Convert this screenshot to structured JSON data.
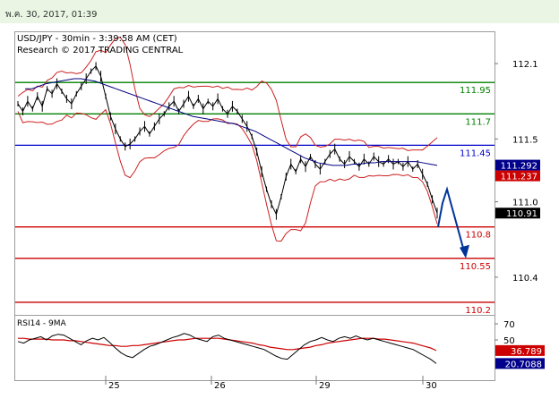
{
  "header": {
    "datetime": "พ.ค. 30, 2017, 01:39"
  },
  "chart_data": {
    "type": "line",
    "title": "USD/JPY - 30min - 3:39:58 AM (CET)",
    "subtitle": "Research © 2017 TRADING CENTRAL",
    "price_axis": {
      "ticks": [
        "112.1",
        "111.5",
        "111.0",
        "110.4"
      ],
      "range": [
        110.1,
        112.35
      ]
    },
    "x_ticks": [
      "25",
      "26",
      "29",
      "30"
    ],
    "series": [
      {
        "values": [
          111.78,
          111.72,
          111.8,
          111.74,
          111.84,
          111.76,
          111.9,
          111.86,
          111.94,
          111.88,
          111.82,
          111.78,
          111.86,
          111.92,
          111.98,
          112.04,
          112.08,
          112.0,
          111.84,
          111.68,
          111.58,
          111.5,
          111.44,
          111.46,
          111.5,
          111.56,
          111.6,
          111.54,
          111.6,
          111.66,
          111.7,
          111.76,
          111.8,
          111.72,
          111.78,
          111.84,
          111.76,
          111.82,
          111.74,
          111.8,
          111.76,
          111.82,
          111.74,
          111.7,
          111.76,
          111.72,
          111.66,
          111.6,
          111.52,
          111.4,
          111.24,
          111.1,
          110.98,
          110.9,
          111.04,
          111.2,
          111.3,
          111.24,
          111.34,
          111.28,
          111.36,
          111.3,
          111.26,
          111.32,
          111.38,
          111.42,
          111.34,
          111.3,
          111.36,
          111.32,
          111.28,
          111.34,
          111.3,
          111.36,
          111.32,
          111.3,
          111.34,
          111.3,
          111.32,
          111.28,
          111.32,
          111.26,
          111.3,
          111.22,
          111.14,
          111.02,
          110.91
        ]
      },
      {
        "values": [
          111.9,
          111.9,
          111.92,
          111.94,
          111.95,
          111.96,
          111.97,
          111.98,
          111.98,
          111.97,
          111.96,
          111.94,
          111.92,
          111.9,
          111.88,
          111.86,
          111.84,
          111.82,
          111.8,
          111.78,
          111.76,
          111.74,
          111.72,
          111.7,
          111.68,
          111.67,
          111.66,
          111.65,
          111.64,
          111.63,
          111.62,
          111.6,
          111.58,
          111.56,
          111.53,
          111.5,
          111.47,
          111.44,
          111.41,
          111.38,
          111.35,
          111.33,
          111.31,
          111.3,
          111.29,
          111.29,
          111.29,
          111.3,
          111.3,
          111.31,
          111.31,
          111.32,
          111.32,
          111.32,
          111.32,
          111.32,
          111.32,
          111.31,
          111.3,
          111.29
        ]
      }
    ],
    "levels": [
      {
        "value": 111.95,
        "label": "111.95",
        "color": "#008000"
      },
      {
        "value": 111.7,
        "label": "111.7",
        "color": "#008000"
      },
      {
        "value": 111.45,
        "label": "111.45",
        "color": "#0000cc"
      },
      {
        "value": 110.8,
        "label": "110.8",
        "color": "#cc0000"
      },
      {
        "value": 110.55,
        "label": "110.55",
        "color": "#cc0000"
      },
      {
        "value": 110.2,
        "label": "110.2",
        "color": "#cc0000"
      }
    ],
    "price_tags": [
      {
        "value": 111.292,
        "label": "111.292",
        "color": "#00008b"
      },
      {
        "value": 111.237,
        "label": "111.237",
        "color": "#cc0000"
      },
      {
        "value": 110.91,
        "label": "110.91",
        "color": "#000000"
      }
    ],
    "forecast_arrow": {
      "from": 111.1,
      "to": 110.55,
      "color": "#003399"
    },
    "rsi": {
      "title": "RSI14 - 9MA",
      "axis_ticks": [
        "70",
        "50"
      ],
      "range": [
        0,
        80
      ],
      "tags": [
        {
          "value": 36.789,
          "label": "36.789",
          "color": "#cc0000"
        },
        {
          "value": 20.7088,
          "label": "20.7088",
          "color": "#00008b"
        }
      ],
      "values": [
        48,
        46,
        50,
        52,
        54,
        50,
        55,
        57,
        56,
        52,
        48,
        44,
        49,
        52,
        50,
        53,
        47,
        40,
        34,
        30,
        28,
        33,
        38,
        42,
        44,
        47,
        50,
        53,
        55,
        58,
        56,
        52,
        50,
        48,
        54,
        56,
        52,
        50,
        48,
        46,
        44,
        42,
        40,
        38,
        34,
        30,
        27,
        26,
        32,
        38,
        44,
        48,
        50,
        53,
        50,
        48,
        52,
        54,
        52,
        55,
        52,
        50,
        52,
        50,
        48,
        46,
        44,
        42,
        40,
        38,
        34,
        30,
        26,
        20.7088
      ],
      "ma_values": [
        52,
        52,
        51,
        51,
        51,
        51,
        50,
        50,
        50,
        49,
        49,
        48,
        47,
        46,
        45,
        44,
        43,
        43,
        42,
        42,
        43,
        43,
        44,
        45,
        46,
        47,
        48,
        49,
        50,
        50,
        51,
        52,
        52,
        52,
        52,
        52,
        51,
        50,
        49,
        48,
        47,
        46,
        44,
        43,
        41,
        40,
        39,
        38,
        38,
        39,
        40,
        41,
        43,
        44,
        46,
        47,
        48,
        49,
        50,
        51,
        52,
        52,
        52,
        51,
        51,
        50,
        49,
        48,
        47,
        46,
        44,
        42,
        40,
        36.789
      ]
    }
  }
}
